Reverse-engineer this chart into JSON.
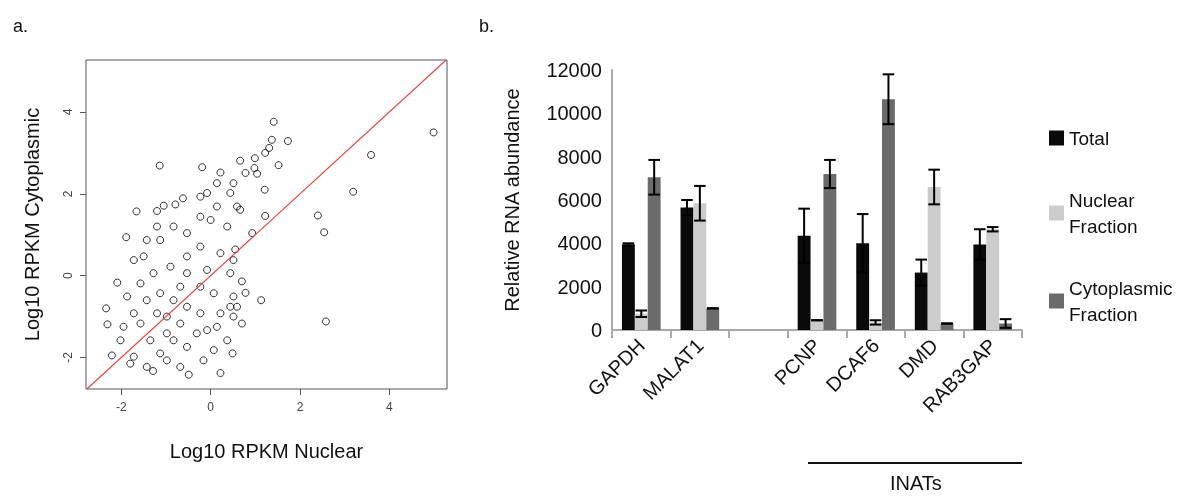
{
  "chart_data": [
    {
      "type": "scatter",
      "title": "a.",
      "xlabel": "Log10 RPKM Nuclear",
      "ylabel": "Log10 RPKM Cytoplasmic",
      "xlim": [
        -2.79,
        5.29
      ],
      "ylim": [
        -2.77,
        5.27
      ],
      "xticks": [
        -2,
        0,
        2,
        4
      ],
      "yticks": [
        -2,
        0,
        2,
        4
      ],
      "marker": "circle",
      "series": [
        {
          "color": "#000000",
          "x": [
            1.41,
            4.99,
            1.73,
            1.37,
            1.31,
            3.59,
            -1.14,
            -0.19,
            0.66,
            0.99,
            1.52,
            1.22,
            3.19,
            2.4,
            2.54,
            1.22,
            -1.66,
            -1.89,
            1.13,
            2.58,
            0.78,
            0.7,
            -2.34,
            -2.09,
            -2.31,
            -2.21,
            0.22,
            -0.49,
            -1.29,
            0.49,
            0.7,
            0.93,
            0.98,
            1.04,
            1.21,
            0.78,
            0.22,
            -0.23,
            -0.08,
            -0.62,
            -1.05,
            -0.79,
            -1.2,
            -1.2,
            -1.43,
            -1.13,
            -0.83,
            -0.53,
            -0.23,
            0.14,
            0.44,
            0.59,
            0.51,
            0.14,
            0.0,
            0.37,
            0.66,
            -1.72,
            -1.5,
            -1.28,
            -0.9,
            -0.53,
            -0.23,
            -0.53,
            -0.08,
            0.22,
            0.51,
            0.55,
            0.44,
            -1.87,
            -1.57,
            -1.95,
            -2.02,
            -1.72,
            -1.72,
            -1.43,
            -1.8,
            -0.98,
            -0.68,
            -0.16,
            0.07,
            0.37,
            0.22,
            0.44,
            0.51,
            0.07,
            -0.23,
            -0.68,
            -1.13,
            -1.43,
            -1.57,
            -1.35,
            -0.98,
            -0.98,
            -0.68,
            -0.83,
            -0.53,
            -0.31,
            -0.23,
            -0.53,
            -1.2,
            -0.83,
            -1.13,
            -0.08,
            0.14,
            0.51,
            0.59
          ],
          "values": [
            3.76,
            3.5,
            3.29,
            3.32,
            3.12,
            2.95,
            2.69,
            2.65,
            2.81,
            2.87,
            2.7,
            3.0,
            2.05,
            1.47,
            1.06,
            1.46,
            1.57,
            0.94,
            -0.6,
            -1.12,
            -0.42,
            -0.14,
            -0.8,
            -0.17,
            -1.19,
            -1.95,
            -2.38,
            -2.42,
            -2.33,
            -1.9,
            -1.17,
            1.04,
            2.63,
            2.49,
            2.1,
            2.51,
            2.52,
            1.93,
            2.02,
            1.89,
            1.71,
            1.74,
            1.58,
            1.2,
            0.87,
            0.87,
            1.2,
            1.04,
            1.44,
            1.69,
            2.02,
            1.69,
            2.26,
            2.26,
            1.36,
            1.2,
            1.61,
            0.38,
            0.47,
            0.06,
            0.22,
            0.47,
            0.71,
            0.06,
            0.14,
            0.55,
            0.38,
            0.64,
            0.06,
            -0.51,
            -0.19,
            -1.25,
            -1.58,
            -0.92,
            -1.98,
            -2.23,
            -2.15,
            -2.07,
            -2.23,
            -2.07,
            -1.82,
            -1.58,
            -0.92,
            -0.76,
            -0.51,
            -0.43,
            -0.27,
            -0.27,
            -0.43,
            -0.6,
            -1.17,
            -1.58,
            -1.41,
            -1.0,
            -1.17,
            -1.58,
            -1.74,
            -1.41,
            -0.92,
            -0.76,
            -0.92,
            -0.6,
            -1.9,
            -1.33,
            -1.25,
            -1.0,
            -0.76
          ]
        },
        {
          "type": "line",
          "color": "#e8463c",
          "marker": "none",
          "x": [
            -2.77,
            5.27
          ],
          "values": [
            -2.77,
            5.27
          ]
        }
      ]
    },
    {
      "type": "bar",
      "title": "b.",
      "ylabel": "Relative RNA abundance",
      "legend": "right",
      "categories": [
        "GAPDH",
        "MALAT1",
        null,
        "PCNP",
        "DCAF6",
        "DMD",
        "RAB3GAP"
      ],
      "ylim": [
        0,
        12000
      ],
      "yticks": [
        0,
        2000,
        4000,
        6000,
        8000,
        10000,
        12000
      ],
      "annotations": [
        "INATs"
      ],
      "series": [
        {
          "name": "Total",
          "color": "#0a0a0a",
          "values": [
            3950,
            5650,
            null,
            4350,
            4000,
            2650,
            3950
          ],
          "errors": [
            50,
            350,
            null,
            1250,
            1350,
            600,
            700
          ]
        },
        {
          "name": "Nuclear Fraction",
          "color": "#cccccc",
          "values": [
            750,
            5850,
            null,
            450,
            350,
            6600,
            4650
          ],
          "errors": [
            150,
            800,
            null,
            0,
            100,
            800,
            100
          ]
        },
        {
          "name": "Cytoplasmic Fraction",
          "color": "#6b6b6b",
          "values": [
            7050,
            1000,
            null,
            7200,
            10650,
            300,
            300
          ],
          "errors": [
            800,
            0,
            null,
            650,
            1150,
            0,
            200
          ]
        }
      ]
    }
  ]
}
